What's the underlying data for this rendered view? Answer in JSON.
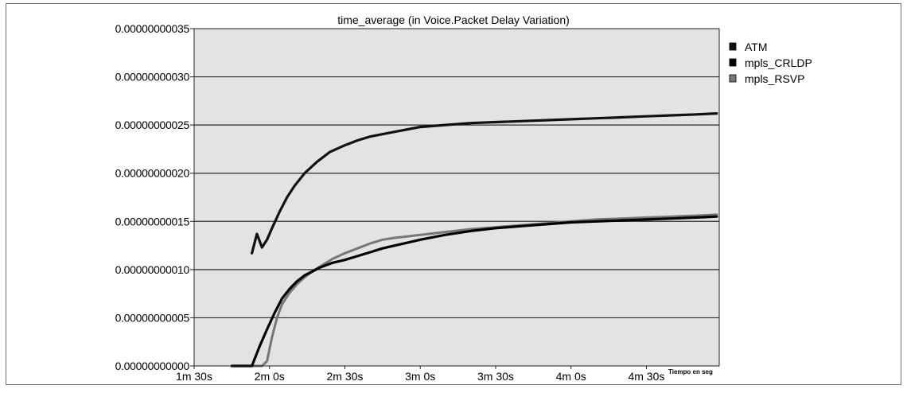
{
  "chart_data": {
    "type": "line",
    "title": "time_average (in Voice.Packet Delay Variation)",
    "xlabel": "Tiempo en seg",
    "ylabel": "",
    "x_unit": "seconds",
    "xlim": [
      90,
      299
    ],
    "ylim": [
      0,
      3.5e-10
    ],
    "x_ticks": [
      {
        "value": 90,
        "label": "1m 30s"
      },
      {
        "value": 120,
        "label": "2m 0s"
      },
      {
        "value": 150,
        "label": "2m 30s"
      },
      {
        "value": 180,
        "label": "3m 0s"
      },
      {
        "value": 210,
        "label": "3m 30s"
      },
      {
        "value": 240,
        "label": "4m 0s"
      },
      {
        "value": 270,
        "label": "4m 30s"
      }
    ],
    "y_ticks": [
      {
        "value": 0,
        "label": "0.00000000000"
      },
      {
        "value": 5e-11,
        "label": "0.00000000005"
      },
      {
        "value": 1e-10,
        "label": "0.00000000010"
      },
      {
        "value": 1.5e-10,
        "label": "0.00000000015"
      },
      {
        "value": 2e-10,
        "label": "0.00000000020"
      },
      {
        "value": 2.5e-10,
        "label": "0.00000000025"
      },
      {
        "value": 3e-10,
        "label": "0.00000000030"
      },
      {
        "value": 3.5e-10,
        "label": "0.00000000035"
      }
    ],
    "grid": true,
    "legend_position": "right",
    "background": "#e3e3e3",
    "series": [
      {
        "name": "ATM",
        "color": "#111111",
        "x": [
          113,
          115,
          117,
          119,
          121,
          124,
          127,
          130,
          134,
          139,
          144,
          150,
          155,
          160,
          170,
          180,
          190,
          200,
          210,
          220,
          230,
          240,
          250,
          260,
          270,
          280,
          290,
          298
        ],
        "y": [
          1.17e-10,
          1.37e-10,
          1.23e-10,
          1.31e-10,
          1.43e-10,
          1.6e-10,
          1.75e-10,
          1.87e-10,
          2e-10,
          2.12e-10,
          2.22e-10,
          2.29e-10,
          2.34e-10,
          2.38e-10,
          2.43e-10,
          2.48e-10,
          2.5e-10,
          2.52e-10,
          2.53e-10,
          2.54e-10,
          2.55e-10,
          2.56e-10,
          2.57e-10,
          2.58e-10,
          2.59e-10,
          2.6e-10,
          2.61e-10,
          2.62e-10
        ]
      },
      {
        "name": "mpls_CRLDP",
        "color": "#000000",
        "x": [
          105,
          113,
          116,
          119,
          122,
          125,
          128,
          131,
          134,
          137,
          140,
          145,
          150,
          155,
          160,
          165,
          170,
          180,
          190,
          200,
          210,
          220,
          230,
          240,
          250,
          260,
          270,
          280,
          290,
          298
        ],
        "y": [
          0,
          0,
          2e-11,
          3.8e-11,
          5.5e-11,
          7e-11,
          8e-11,
          8.8e-11,
          9.4e-11,
          9.8e-11,
          1.02e-10,
          1.07e-10,
          1.1e-10,
          1.14e-10,
          1.18e-10,
          1.22e-10,
          1.25e-10,
          1.31e-10,
          1.36e-10,
          1.4e-10,
          1.43e-10,
          1.45e-10,
          1.47e-10,
          1.49e-10,
          1.5e-10,
          1.51e-10,
          1.52e-10,
          1.53e-10,
          1.54e-10,
          1.55e-10
        ]
      },
      {
        "name": "mpls_RSVP",
        "color": "#777777",
        "x": [
          105,
          117,
          119,
          121,
          123,
          125,
          128,
          131,
          134,
          137,
          140,
          145,
          150,
          155,
          160,
          165,
          170,
          180,
          190,
          200,
          210,
          220,
          230,
          240,
          250,
          260,
          270,
          280,
          290,
          298
        ],
        "y": [
          0,
          0,
          5e-12,
          3e-11,
          5e-11,
          6.4e-11,
          7.6e-11,
          8.5e-11,
          9.2e-11,
          9.8e-11,
          1.03e-10,
          1.11e-10,
          1.17e-10,
          1.22e-10,
          1.27e-10,
          1.31e-10,
          1.33e-10,
          1.36e-10,
          1.39e-10,
          1.42e-10,
          1.44e-10,
          1.46e-10,
          1.48e-10,
          1.5e-10,
          1.52e-10,
          1.53e-10,
          1.54e-10,
          1.55e-10,
          1.56e-10,
          1.57e-10
        ]
      }
    ]
  }
}
